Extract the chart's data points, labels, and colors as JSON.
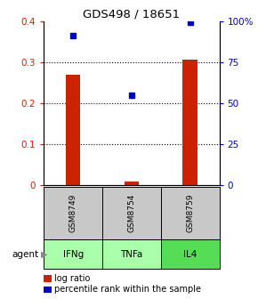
{
  "title": "GDS498 / 18651",
  "samples": [
    "GSM8749",
    "GSM8754",
    "GSM8759"
  ],
  "agents": [
    "IFNg",
    "TNFa",
    "IL4"
  ],
  "log_ratios": [
    0.27,
    0.01,
    0.305
  ],
  "percentile_ranks": [
    0.91,
    0.55,
    0.99
  ],
  "bar_color": "#cc2200",
  "dot_color": "#0000cc",
  "left_ylim": [
    0,
    0.4
  ],
  "right_ylim": [
    0,
    1.0
  ],
  "left_yticks": [
    0,
    0.1,
    0.2,
    0.3,
    0.4
  ],
  "left_yticklabels": [
    "0",
    "0.1",
    "0.2",
    "0.3",
    "0.4"
  ],
  "right_yticks": [
    0,
    0.25,
    0.5,
    0.75,
    1.0
  ],
  "right_yticklabels": [
    "0",
    "25",
    "50",
    "75",
    "100%"
  ],
  "sample_box_color": "#c8c8c8",
  "agent_colors": [
    "#aaffaa",
    "#aaffaa",
    "#55dd55"
  ],
  "background_color": "#ffffff",
  "bar_width": 0.25,
  "n": 3,
  "grid_yticks": [
    0.1,
    0.2,
    0.3
  ],
  "legend_items": [
    "log ratio",
    "percentile rank within the sample"
  ]
}
